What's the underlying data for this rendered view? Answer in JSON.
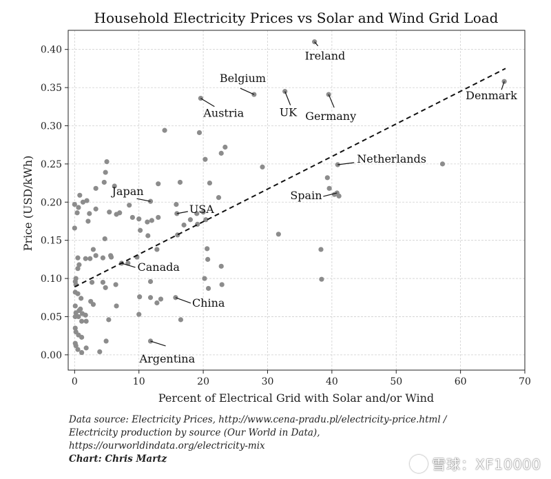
{
  "chart_data": {
    "type": "scatter",
    "title": "Household Electricity Prices vs Solar and Wind Grid Load",
    "xlabel": "Percent of Electrical Grid with Solar and/or Wind",
    "ylabel": "Price (USD/kWh)",
    "xlim": [
      -1,
      70
    ],
    "ylim": [
      -0.02,
      0.425
    ],
    "xticks": [
      0,
      10,
      20,
      30,
      40,
      50,
      60,
      70
    ],
    "xtick_labels": [
      "0",
      "10",
      "20",
      "30",
      "40",
      "50",
      "60",
      "70"
    ],
    "yticks": [
      0.0,
      0.05,
      0.1,
      0.15,
      0.2,
      0.25,
      0.3,
      0.35,
      0.4
    ],
    "ytick_labels": [
      "0.00",
      "0.05",
      "0.10",
      "0.15",
      "0.20",
      "0.25",
      "0.30",
      "0.35",
      "0.40"
    ],
    "grid": true,
    "point_color": "#8c8c8c",
    "trendline": {
      "style": "dashed",
      "color": "#111111",
      "x": [
        0,
        67
      ],
      "y": [
        0.089,
        0.375
      ]
    },
    "labeled_points": [
      {
        "label": "Ireland",
        "x": 37.3,
        "y": 0.41
      },
      {
        "label": "Belgium",
        "x": 27.9,
        "y": 0.341
      },
      {
        "label": "UK",
        "x": 32.7,
        "y": 0.345
      },
      {
        "label": "Germany",
        "x": 39.5,
        "y": 0.341
      },
      {
        "label": "Denmark",
        "x": 66.8,
        "y": 0.358
      },
      {
        "label": "Austria",
        "x": 19.6,
        "y": 0.336
      },
      {
        "label": "Netherlands",
        "x": 40.9,
        "y": 0.249
      },
      {
        "label": "Spain",
        "x": 40.8,
        "y": 0.212
      },
      {
        "label": "Japan",
        "x": 11.8,
        "y": 0.201
      },
      {
        "label": "USA",
        "x": 15.9,
        "y": 0.185
      },
      {
        "label": "Canada",
        "x": 7.3,
        "y": 0.12
      },
      {
        "label": "China",
        "x": 15.7,
        "y": 0.075
      },
      {
        "label": "Argentina",
        "x": 11.8,
        "y": 0.018
      }
    ],
    "points": [
      [
        14,
        0.294
      ],
      [
        19.4,
        0.291
      ],
      [
        23.4,
        0.272
      ],
      [
        22.8,
        0.264
      ],
      [
        20.3,
        0.256
      ],
      [
        29.2,
        0.246
      ],
      [
        57.2,
        0.25
      ],
      [
        39.3,
        0.232
      ],
      [
        39.6,
        0.218
      ],
      [
        40.4,
        0.21
      ],
      [
        41.1,
        0.208
      ],
      [
        31.7,
        0.158
      ],
      [
        38.3,
        0.138
      ],
      [
        38.4,
        0.099
      ],
      [
        5,
        0.253
      ],
      [
        4.8,
        0.239
      ],
      [
        6.2,
        0.221
      ],
      [
        4.6,
        0.226
      ],
      [
        3.3,
        0.218
      ],
      [
        0,
        0.197
      ],
      [
        0.6,
        0.193
      ],
      [
        1.3,
        0.2
      ],
      [
        1.9,
        0.202
      ],
      [
        0.4,
        0.186
      ],
      [
        0.8,
        0.209
      ],
      [
        2.3,
        0.185
      ],
      [
        3.3,
        0.191
      ],
      [
        5.4,
        0.187
      ],
      [
        2.1,
        0.175
      ],
      [
        0,
        0.166
      ],
      [
        6.5,
        0.184
      ],
      [
        7,
        0.186
      ],
      [
        8.5,
        0.196
      ],
      [
        9,
        0.18
      ],
      [
        10,
        0.178
      ],
      [
        10.2,
        0.163
      ],
      [
        11.3,
        0.174
      ],
      [
        13,
        0.224
      ],
      [
        15.8,
        0.197
      ],
      [
        16.4,
        0.226
      ],
      [
        13,
        0.18
      ],
      [
        12,
        0.176
      ],
      [
        17,
        0.17
      ],
      [
        18,
        0.177
      ],
      [
        16,
        0.157
      ],
      [
        19,
        0.185
      ],
      [
        20,
        0.187
      ],
      [
        20.4,
        0.177
      ],
      [
        21,
        0.225
      ],
      [
        22.4,
        0.206
      ],
      [
        19.1,
        0.171
      ],
      [
        4.7,
        0.152
      ],
      [
        2.9,
        0.138
      ],
      [
        3.3,
        0.13
      ],
      [
        5.6,
        0.13
      ],
      [
        5.7,
        0.128
      ],
      [
        4.4,
        0.127
      ],
      [
        2.4,
        0.126
      ],
      [
        1.7,
        0.126
      ],
      [
        0.5,
        0.127
      ],
      [
        0.7,
        0.118
      ],
      [
        0.5,
        0.113
      ],
      [
        8.3,
        0.12
      ],
      [
        9.7,
        0.128
      ],
      [
        12.8,
        0.138
      ],
      [
        11.4,
        0.156
      ],
      [
        2.7,
        0.095
      ],
      [
        4.8,
        0.088
      ],
      [
        6.4,
        0.092
      ],
      [
        11.8,
        0.096
      ],
      [
        0.2,
        0.1
      ],
      [
        0.2,
        0.092
      ],
      [
        0.1,
        0.096
      ],
      [
        0.5,
        0.08
      ],
      [
        0.1,
        0.082
      ],
      [
        1,
        0.074
      ],
      [
        0.1,
        0.064
      ],
      [
        0.7,
        0.058
      ],
      [
        0.2,
        0.055
      ],
      [
        1.2,
        0.054
      ],
      [
        1.7,
        0.052
      ],
      [
        0.6,
        0.05
      ],
      [
        1.1,
        0.044
      ],
      [
        1.8,
        0.044
      ],
      [
        2.5,
        0.07
      ],
      [
        2.9,
        0.066
      ],
      [
        4.4,
        0.095
      ],
      [
        5.3,
        0.046
      ],
      [
        6.5,
        0.064
      ],
      [
        10,
        0.053
      ],
      [
        10.1,
        0.076
      ],
      [
        11.8,
        0.075
      ],
      [
        12.8,
        0.068
      ],
      [
        13.4,
        0.073
      ],
      [
        16.5,
        0.046
      ],
      [
        20.2,
        0.1
      ],
      [
        20.8,
        0.087
      ],
      [
        22.9,
        0.092
      ],
      [
        20.6,
        0.139
      ],
      [
        20.7,
        0.125
      ],
      [
        22.8,
        0.116
      ],
      [
        0.1,
        0.035
      ],
      [
        0.2,
        0.03
      ],
      [
        0.6,
        0.026
      ],
      [
        1.1,
        0.023
      ],
      [
        0.1,
        0.015
      ],
      [
        0.2,
        0.012
      ],
      [
        0.5,
        0.007
      ],
      [
        1.1,
        0.003
      ],
      [
        1.8,
        0.009
      ],
      [
        3.9,
        0.004
      ],
      [
        4.9,
        0.018
      ],
      [
        0.9,
        0.06
      ],
      [
        0.1,
        0.05
      ]
    ]
  },
  "footer": {
    "source_line1": "Data source: Electricity Prices, http://www.cena-pradu.pl/electricity-price.html /",
    "source_line2": "Electricity production by source (Our World in Data),",
    "source_line3": "https://ourworldindata.org/electricity-mix",
    "credit": "Chart: Chris Martz"
  },
  "watermark": {
    "text": "雪球：XF10000"
  }
}
